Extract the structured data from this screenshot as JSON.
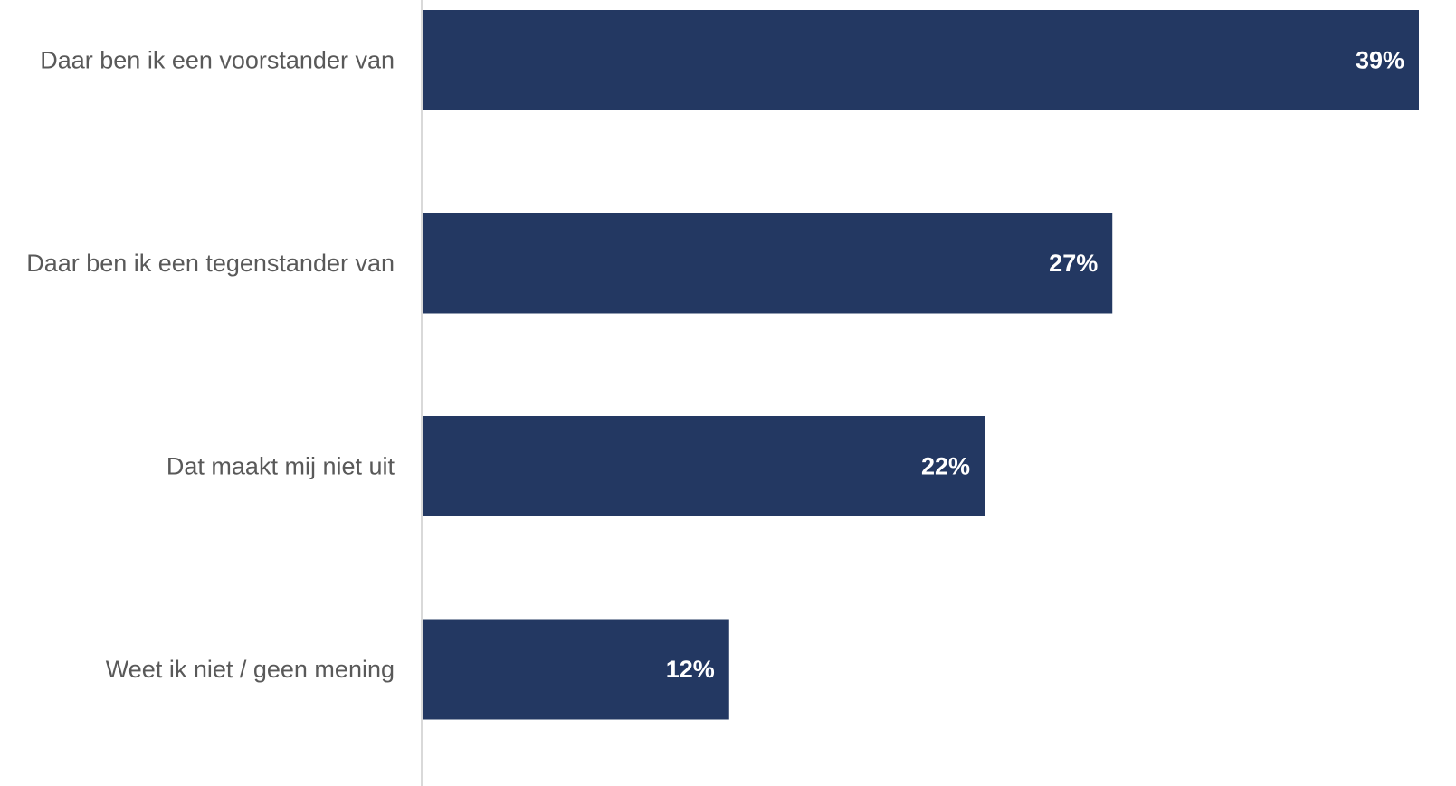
{
  "chart_data": {
    "type": "bar",
    "orientation": "horizontal",
    "categories": [
      "Daar ben ik een voorstander van",
      "Daar ben ik een tegenstander van",
      "Dat maakt mij niet uit",
      "Weet ik niet / geen mening"
    ],
    "values": [
      39,
      27,
      22,
      12
    ],
    "value_labels": [
      "39%",
      "27%",
      "22%",
      "12%"
    ],
    "unit": "%",
    "title": "",
    "xlabel": "",
    "ylabel": "",
    "xlim": [
      0,
      39
    ],
    "grid": false,
    "legend": "none",
    "colors": {
      "bar": "#233862",
      "category_text": "#595959",
      "value_text": "#ffffff",
      "axis": "#d9d9d9"
    }
  }
}
